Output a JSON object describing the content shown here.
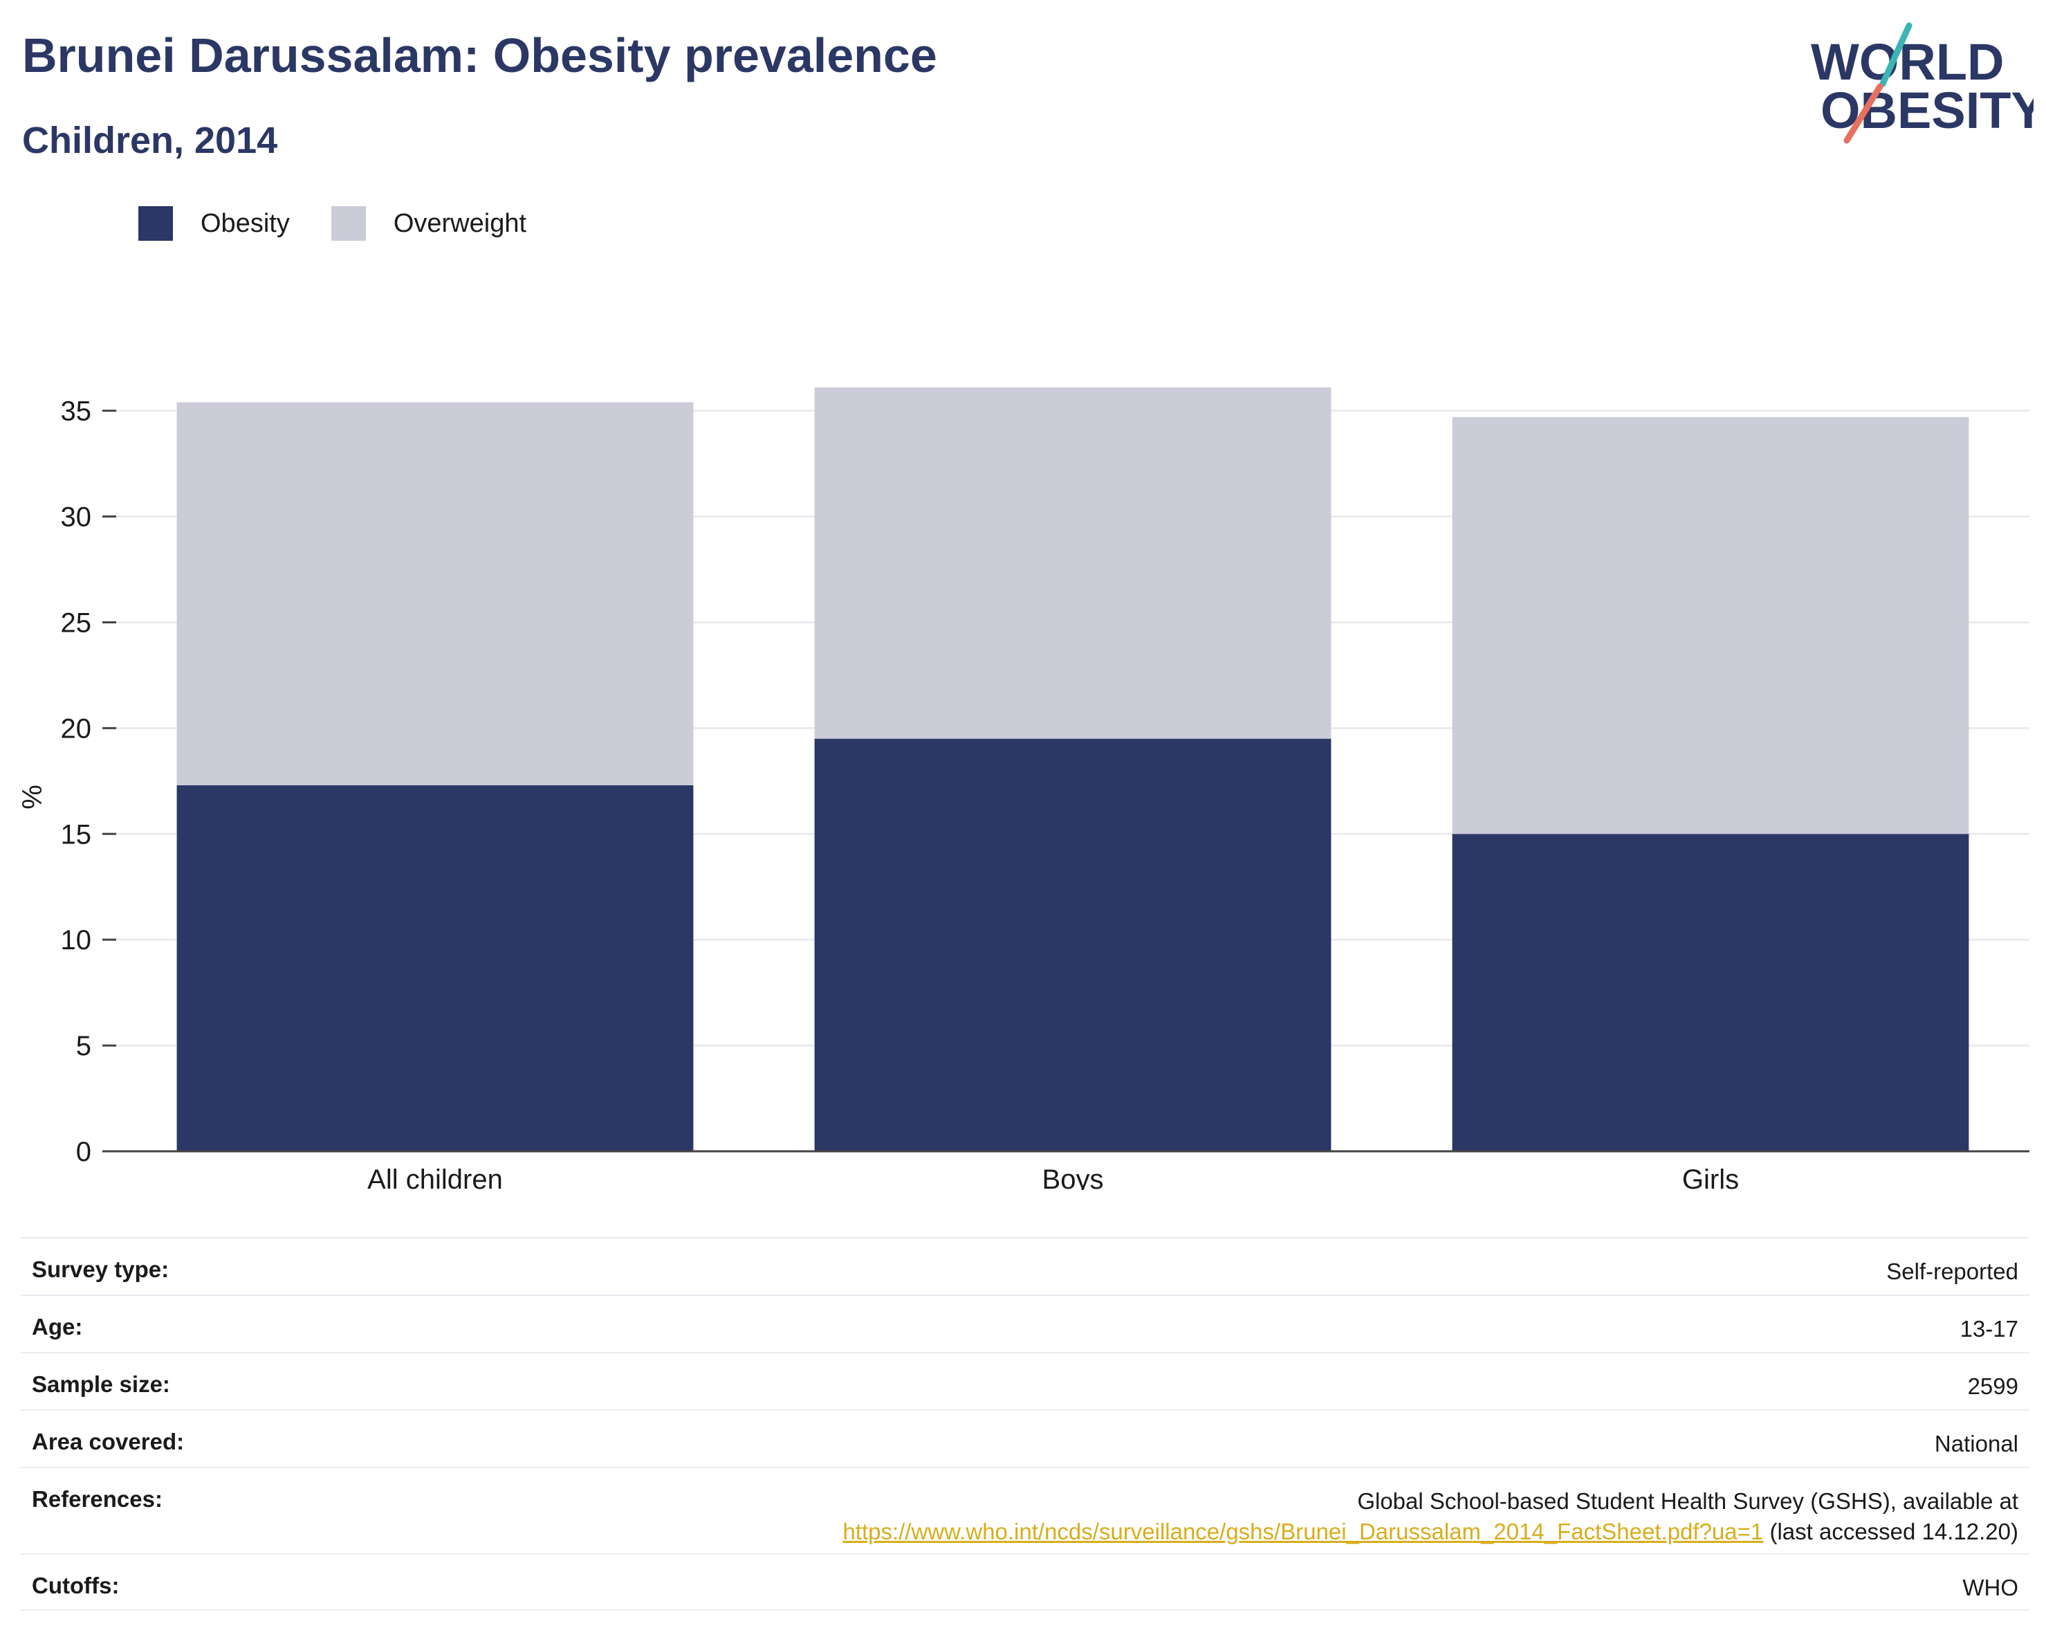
{
  "header": {
    "title": "Brunei Darussalam: Obesity prevalence",
    "subtitle": "Children, 2014"
  },
  "logo": {
    "line1": "WORLD",
    "line2": "OBESITY",
    "colors": {
      "text": "#2b3764",
      "slash_teal": "#3bb4b4",
      "slash_coral": "#e8705e"
    }
  },
  "legend": [
    {
      "label": "Obesity",
      "color": "#2b3764"
    },
    {
      "label": "Overweight",
      "color": "#cbccd8"
    }
  ],
  "chart_data": {
    "type": "bar",
    "stacked": true,
    "categories": [
      "All children",
      "Boys",
      "Girls"
    ],
    "series": [
      {
        "name": "Obesity",
        "color": "#2b3764",
        "values": [
          17.3,
          19.5,
          15.0
        ]
      },
      {
        "name": "Overweight",
        "color": "#cbccd8",
        "values": [
          18.1,
          16.6,
          19.7
        ]
      }
    ],
    "title": "Brunei Darussalam: Obesity prevalence",
    "subtitle": "Children, 2014",
    "xlabel": "",
    "ylabel": "%",
    "ylim": [
      0,
      36.1
    ],
    "yticks": [
      0,
      5,
      10,
      15,
      20,
      25,
      30,
      35
    ],
    "grid": true,
    "legend_position": "top-left"
  },
  "info": [
    {
      "label": "Survey type:",
      "value": "Self-reported"
    },
    {
      "label": "Age:",
      "value": "13-17"
    },
    {
      "label": "Sample size:",
      "value": "2599"
    },
    {
      "label": "Area covered:",
      "value": "National"
    },
    {
      "label": "References:",
      "value": "Global School-based Student Health Survey (GSHS), available at",
      "link": "https://www.who.int/ncds/surveillance/gshs/Brunei_Darussalam_2014_FactSheet.pdf?ua=1",
      "suffix": " (last accessed 14.12.20)"
    },
    {
      "label": "Cutoffs:",
      "value": "WHO"
    }
  ]
}
